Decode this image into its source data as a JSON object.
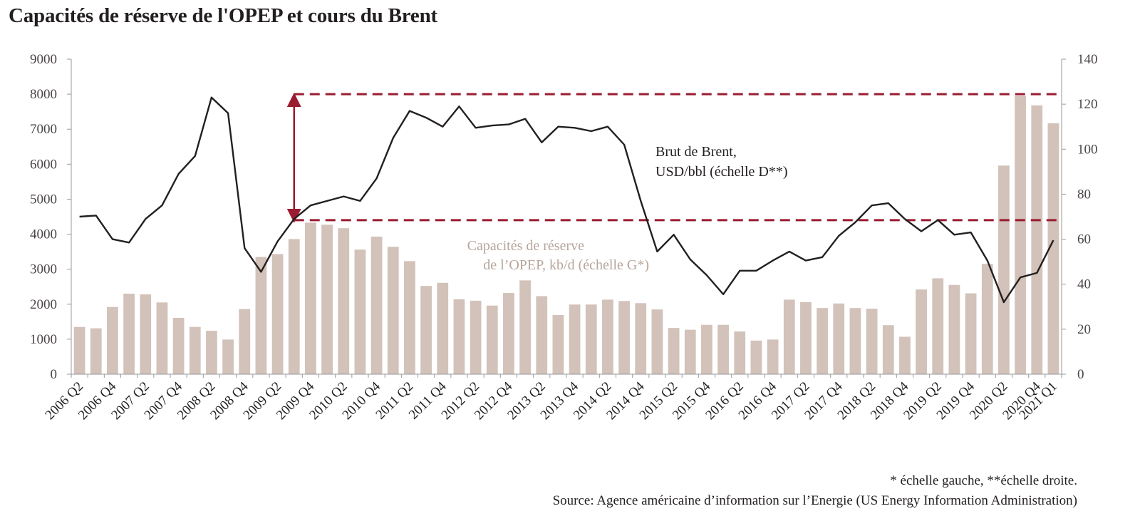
{
  "title": "Capacités de réserve de l'OPEP et cours du Brent",
  "footnote": "* échelle gauche, **échelle droite.",
  "source": "Source: Agence américaine d’information sur l’Energie (US Energy Information Administration)",
  "colors": {
    "bars": "#d2c2b9",
    "line": "#231f20",
    "dashed": "#9b1b30",
    "axis": "#9a9a9a"
  },
  "chart_data": {
    "type": "bar+line",
    "quarters": [
      "2006 Q2",
      "2006 Q3",
      "2006 Q4",
      "2007 Q1",
      "2007 Q2",
      "2007 Q3",
      "2007 Q4",
      "2008 Q1",
      "2008 Q2",
      "2008 Q3",
      "2008 Q4",
      "2009 Q1",
      "2009 Q2",
      "2009 Q3",
      "2009 Q4",
      "2010 Q1",
      "2010 Q2",
      "2010 Q3",
      "2010 Q4",
      "2011 Q1",
      "2011 Q2",
      "2011 Q3",
      "2011 Q4",
      "2012 Q1",
      "2012 Q2",
      "2012 Q3",
      "2012 Q4",
      "2013 Q1",
      "2013 Q2",
      "2013 Q3",
      "2013 Q4",
      "2014 Q1",
      "2014 Q2",
      "2014 Q3",
      "2014 Q4",
      "2015 Q1",
      "2015 Q2",
      "2015 Q3",
      "2015 Q4",
      "2016 Q1",
      "2016 Q2",
      "2016 Q3",
      "2016 Q4",
      "2017 Q1",
      "2017 Q2",
      "2017 Q3",
      "2017 Q4",
      "2018 Q1",
      "2018 Q2",
      "2018 Q3",
      "2018 Q4",
      "2019 Q1",
      "2019 Q2",
      "2019 Q3",
      "2019 Q4",
      "2020 Q1",
      "2020 Q2",
      "2020 Q3",
      "2020 Q4",
      "2021 Q1"
    ],
    "x_tick_labels": [
      "2006 Q2",
      "2006 Q4",
      "2007 Q2",
      "2007 Q4",
      "2008 Q2",
      "2008 Q4",
      "2009 Q2",
      "2009 Q4",
      "2010 Q2",
      "2010 Q4",
      "2011 Q2",
      "2011 Q4",
      "2012 Q2",
      "2012 Q4",
      "2013 Q2",
      "2013 Q4",
      "2014 Q2",
      "2014 Q4",
      "2015 Q2",
      "2015 Q4",
      "2016 Q2",
      "2016 Q4",
      "2017 Q2",
      "2017 Q4",
      "2018 Q2",
      "2018 Q4",
      "2019 Q2",
      "2019 Q4",
      "2020 Q2",
      "2020 Q4",
      "2021 Q1"
    ],
    "series": [
      {
        "name": "Capacités de réserve de l’OPEP, kb/d (échelle G*)",
        "type": "bar",
        "axis": "left",
        "values": [
          1350,
          1310,
          1920,
          2300,
          2280,
          2050,
          1610,
          1350,
          1240,
          990,
          1860,
          3350,
          3430,
          3860,
          4330,
          4270,
          4170,
          3560,
          3930,
          3640,
          3230,
          2520,
          2610,
          2140,
          2100,
          1960,
          2320,
          2680,
          2230,
          1690,
          1990,
          1990,
          2130,
          2090,
          2030,
          1850,
          1320,
          1270,
          1410,
          1410,
          1220,
          960,
          990,
          2130,
          2060,
          1890,
          2020,
          1890,
          1870,
          1400,
          1070,
          2420,
          2740,
          2550,
          2310,
          3150,
          5960,
          7950,
          7680,
          7170
        ]
      },
      {
        "name": "Brut de Brent, USD/bbl (échelle D**)",
        "type": "line",
        "axis": "right",
        "values": [
          70,
          70.5,
          60,
          58.5,
          69,
          75,
          89,
          97,
          123,
          116,
          56,
          45.5,
          59,
          69,
          75,
          77,
          79,
          77,
          87,
          105,
          117,
          114,
          110,
          119,
          109.5,
          110.5,
          111,
          113.5,
          103,
          110,
          109.5,
          108,
          110,
          102,
          77,
          54.5,
          62,
          51,
          44,
          35.5,
          46,
          46,
          50.5,
          54.5,
          50.5,
          52,
          61.5,
          67.5,
          75,
          76,
          69,
          63.5,
          68.5,
          62,
          63,
          50.5,
          32,
          43,
          45,
          59.5
        ]
      }
    ],
    "left_axis": {
      "min": 0,
      "max": 9000,
      "ticks": [
        0,
        1000,
        2000,
        3000,
        4000,
        5000,
        6000,
        7000,
        8000,
        9000
      ]
    },
    "right_axis": {
      "min": 0,
      "max": 140,
      "ticks": [
        0,
        20,
        40,
        60,
        80,
        100,
        120,
        140
      ]
    },
    "reference_lines": [
      {
        "axis": "left",
        "value": 8000,
        "style": "dashed"
      },
      {
        "axis": "left",
        "value": 4400,
        "style": "dashed"
      }
    ],
    "arrow": {
      "x_index": 13,
      "from": 4400,
      "to": 8000
    },
    "annotations": {
      "brent_line1": "Brut de Brent,",
      "brent_line2": "USD/bbl (échelle D**)",
      "opec_line1": "Capacités de réserve",
      "opec_line2": "de l’OPEP, kb/d (échelle G*)"
    },
    "grid": false
  }
}
